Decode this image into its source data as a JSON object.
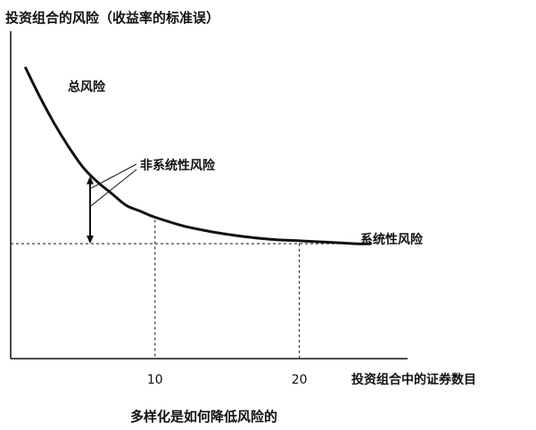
{
  "chart_data": {
    "type": "line",
    "ylabel": "投资组合的风险（收益率的标准误）",
    "xlabel": "投资组合中的证券数目",
    "caption": "多样化是如何降低风险的",
    "x_ticks": [
      10,
      20
    ],
    "xlim": [
      0,
      27.5
    ],
    "ylim": [
      0,
      1
    ],
    "systematic_risk_level": 0.39,
    "grid": false,
    "series": [
      {
        "name": "总风险",
        "x": [
          1,
          2,
          3,
          4,
          5,
          6,
          7,
          8,
          9,
          10,
          12,
          14,
          16,
          18,
          20,
          22,
          24,
          25
        ],
        "y": [
          0.99,
          0.89,
          0.8,
          0.72,
          0.65,
          0.6,
          0.56,
          0.52,
          0.5,
          0.48,
          0.45,
          0.43,
          0.415,
          0.405,
          0.4,
          0.395,
          0.39,
          0.39
        ]
      }
    ],
    "annotations": {
      "total_risk": "总风险",
      "unsystematic_risk": "非系统性风险",
      "systematic_risk": "系统性风险",
      "arrow_at_x": 5.5,
      "dashed_verticals_at_x": [
        10,
        20
      ]
    },
    "colors": {
      "line": "#111111",
      "axis": "#111111",
      "text": "#111111"
    }
  }
}
